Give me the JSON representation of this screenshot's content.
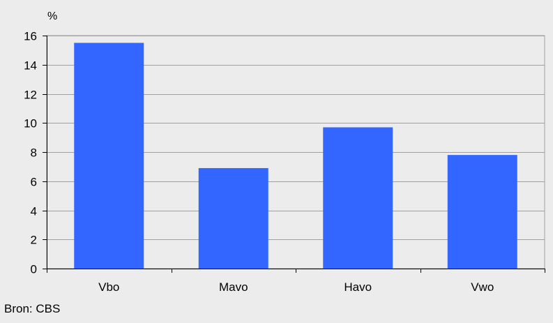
{
  "chart_data": {
    "type": "bar",
    "categories": [
      "Vbo",
      "Mavo",
      "Havo",
      "Vwo"
    ],
    "values": [
      15.5,
      6.9,
      9.7,
      7.8
    ],
    "title": "",
    "xlabel": "",
    "ylabel": "%",
    "ylim": [
      0,
      16
    ],
    "yticks": [
      0,
      2,
      4,
      6,
      8,
      10,
      12,
      14,
      16
    ],
    "grid": true,
    "bar_color": "#3366ff",
    "plot_background": "#ececec"
  },
  "footer": {
    "source": "Bron: CBS"
  }
}
